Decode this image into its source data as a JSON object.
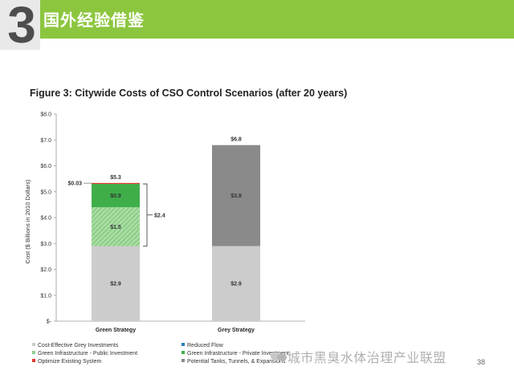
{
  "header": {
    "section_number": "3",
    "title": "国外经验借鉴",
    "band_color": "#8cc63f"
  },
  "figure_title": "Figure 3: Citywide Costs of CSO Control Scenarios (after 20 years)",
  "watermark": "城市黑臭水体治理产业联盟",
  "page_number": "38",
  "chart_data": {
    "type": "bar",
    "stacked": true,
    "title": "Figure 3: Citywide Costs of CSO Control Scenarios (after 20 years)",
    "ylabel": "Cost ($ Billions in 2010 Dollars)",
    "xlabel": "",
    "ylim": [
      0,
      8
    ],
    "yticks": [
      "$-",
      "$1.0",
      "$2.0",
      "$3.0",
      "$4.0",
      "$5.0",
      "$6.0",
      "$7.0",
      "$8.0"
    ],
    "categories": [
      "Green Strategy",
      "Grey Strategy"
    ],
    "series": [
      {
        "name": "Cost-Effective Grey Investments",
        "color": "#cccccc",
        "values": [
          2.9,
          2.9
        ],
        "labels": [
          "$2.9",
          "$2.9"
        ]
      },
      {
        "name": "Green Infrastructure - Public Investment",
        "color": "#8fcf8a",
        "pattern": "hatched",
        "values": [
          1.5,
          0
        ],
        "labels": [
          "$1.5",
          ""
        ]
      },
      {
        "name": "Green Infrastructure - Private Investment",
        "color": "#3fae49",
        "values": [
          0.9,
          0
        ],
        "labels": [
          "$0.9",
          ""
        ]
      },
      {
        "name": "Reduced Flow",
        "color": "#2a7fb8",
        "values": [
          0,
          0
        ],
        "labels": [
          "",
          ""
        ]
      },
      {
        "name": "Optimize Existing System",
        "color": "#e2382e",
        "values": [
          0.03,
          0
        ],
        "labels": [
          "$0.03",
          ""
        ]
      },
      {
        "name": "Potential Tanks, Tunnels, & Expansions",
        "color": "#8a8a8a",
        "values": [
          0,
          3.9
        ],
        "labels": [
          "",
          "$3.9"
        ]
      }
    ],
    "totals": [
      "$5.3",
      "$6.8"
    ],
    "bracket_annotation": "$2.4",
    "legend": {
      "placement": "bottom",
      "items": [
        {
          "label": "Cost-Effective Grey Investments",
          "color": "#cccccc"
        },
        {
          "label": "Reduced Flow",
          "color": "#2a7fb8"
        },
        {
          "label": "Green Infrastructure - Public Investment",
          "color": "#8fcf8a"
        },
        {
          "label": "Green Infrastructure - Private Investment",
          "color": "#3fae49"
        },
        {
          "label": "Optimize Existing System",
          "color": "#e2382e"
        },
        {
          "label": "Potential Tanks, Tunnels, & Expansions",
          "color": "#8a8a8a"
        }
      ]
    },
    "grid": false
  }
}
